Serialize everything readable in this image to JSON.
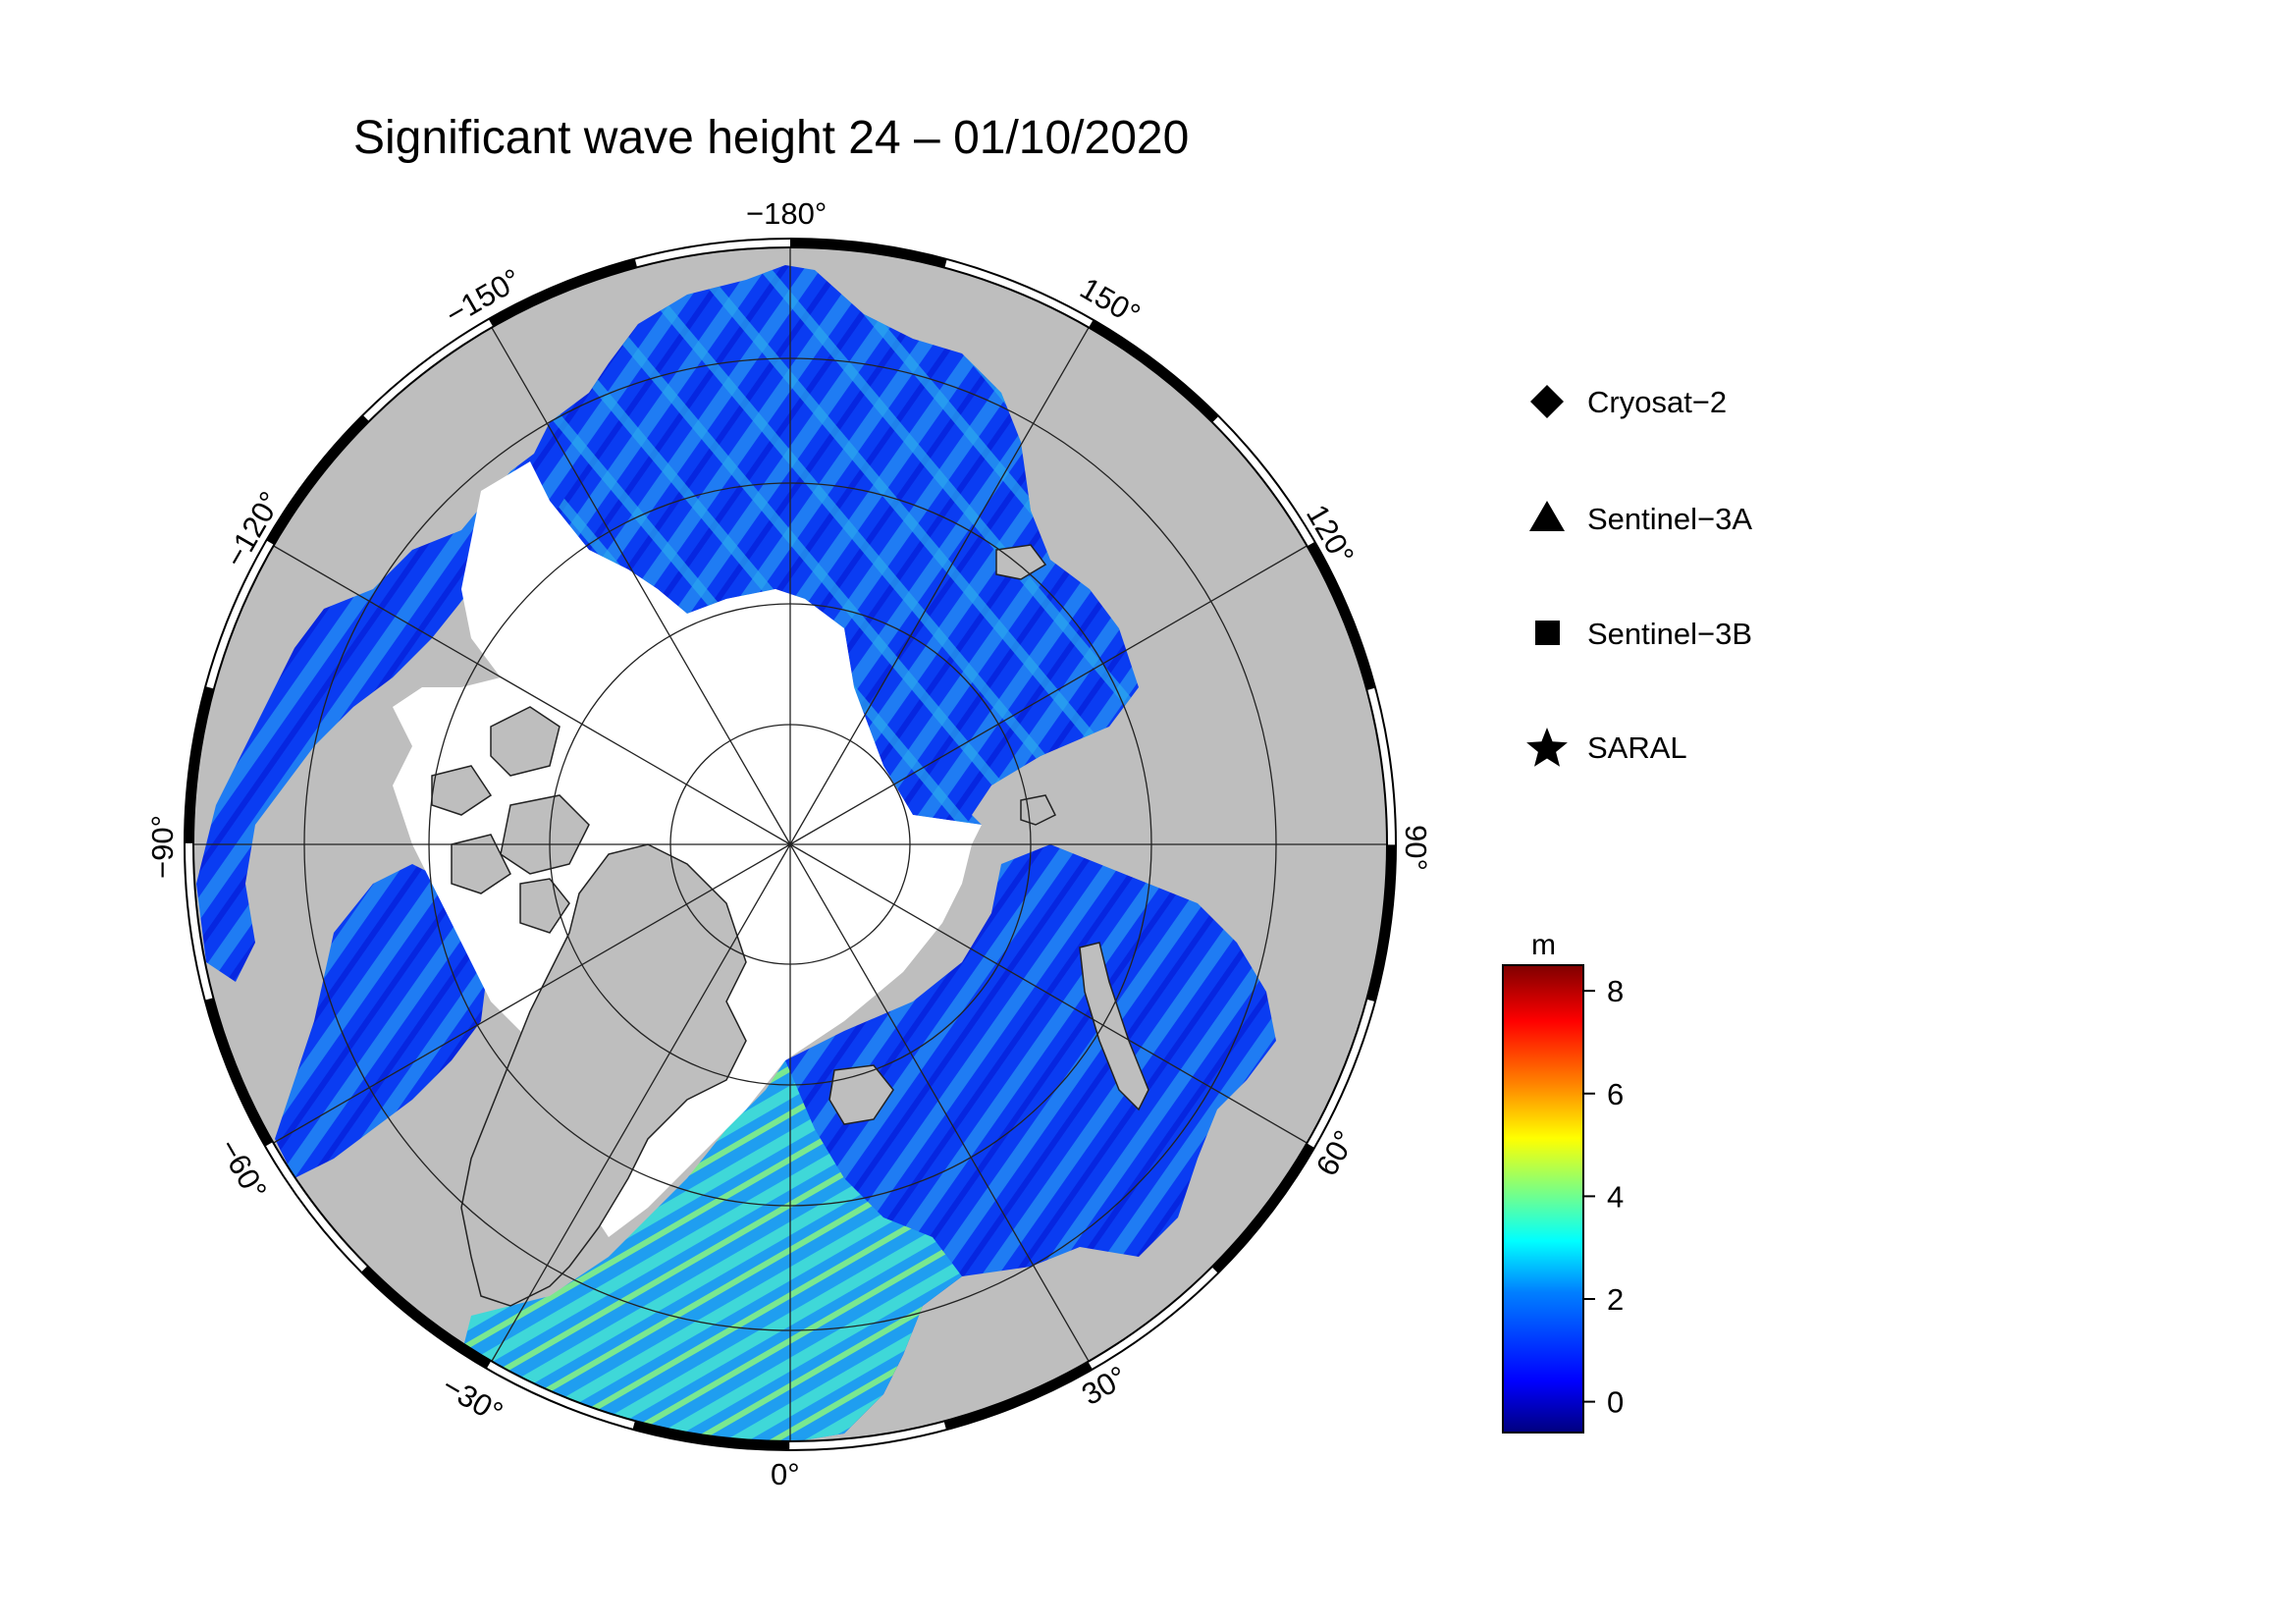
{
  "title": "Significant wave height 24 – 01/10/2020",
  "projection": "polar-stereographic-north",
  "longitude_labels": [
    {
      "lon": -180,
      "text": "−180°"
    },
    {
      "lon": 150,
      "text": "150°"
    },
    {
      "lon": 120,
      "text": "120°"
    },
    {
      "lon": 90,
      "text": "90°"
    },
    {
      "lon": 60,
      "text": "60°"
    },
    {
      "lon": 30,
      "text": "30°"
    },
    {
      "lon": 0,
      "text": "0°"
    },
    {
      "lon": -30,
      "text": "−30°"
    },
    {
      "lon": -60,
      "text": "−60°"
    },
    {
      "lon": -90,
      "text": "−90°"
    },
    {
      "lon": -120,
      "text": "−120°"
    },
    {
      "lon": -150,
      "text": "−150°"
    }
  ],
  "legend": [
    {
      "symbol": "diamond",
      "label": "Cryosat−2"
    },
    {
      "symbol": "triangle",
      "label": "Sentinel−3A"
    },
    {
      "symbol": "square",
      "label": "Sentinel−3B"
    },
    {
      "symbol": "star",
      "label": "SARAL"
    }
  ],
  "colorbar": {
    "unit": "m",
    "min": -0.6,
    "max": 8.5,
    "ticks": [
      {
        "value": 8,
        "text": "8"
      },
      {
        "value": 6,
        "text": "6"
      },
      {
        "value": 4,
        "text": "4"
      },
      {
        "value": 2,
        "text": "2"
      },
      {
        "value": 0,
        "text": "0"
      }
    ],
    "colors": [
      "#00007f",
      "#0000ff",
      "#007fff",
      "#00ffff",
      "#7fff7f",
      "#ffff00",
      "#ff7f00",
      "#ff0000",
      "#7f0000"
    ]
  },
  "colors": {
    "land": "#bebebe",
    "ice": "#ffffff",
    "ocean_low": "#0a2cf0",
    "ocean_mid": "#1e88f0",
    "ocean_high": "#3fd4e8",
    "frame": "#000000"
  }
}
